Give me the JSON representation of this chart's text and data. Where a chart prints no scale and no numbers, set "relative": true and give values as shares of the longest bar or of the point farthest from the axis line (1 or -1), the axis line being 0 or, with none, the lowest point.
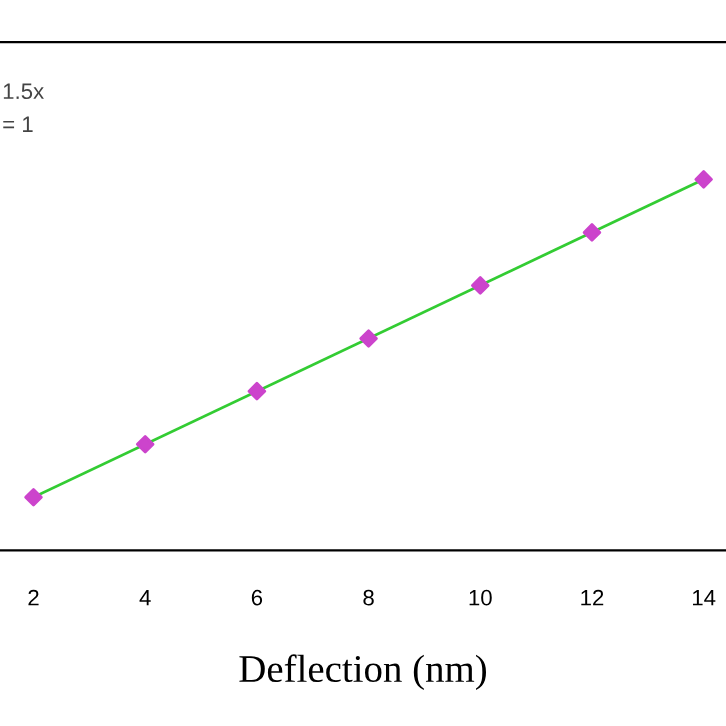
{
  "chart_data": {
    "type": "scatter",
    "xlabel": "Deflection (nm)",
    "relative": true,
    "xlim": [
      1.4,
      14.4
    ],
    "xticks": [
      2,
      4,
      6,
      8,
      10,
      12,
      14
    ],
    "grid": false,
    "legend": false,
    "tick_labels": "x",
    "annotations": [
      "1.5x",
      "= 1"
    ],
    "series": [
      {
        "type": "line",
        "color": "#33cc33",
        "x": [
          2,
          14
        ],
        "values": [
          0.143,
          1
        ],
        "marker": "none",
        "line_style": "solid"
      },
      {
        "color": "#cc44cc",
        "x": [
          2,
          4,
          6,
          8,
          10,
          12,
          14
        ],
        "values": [
          0.143,
          0.286,
          0.429,
          0.571,
          0.714,
          0.857,
          1
        ],
        "marker": "diamond"
      }
    ]
  }
}
